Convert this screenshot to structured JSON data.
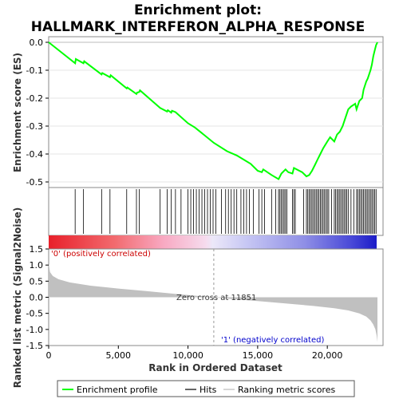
{
  "title_line1": "Enrichment plot:",
  "title_line2": "HALLMARK_INTERFERON_ALPHA_RESPONSE",
  "es_axis_label": "Enrichment score (ES)",
  "metric_axis_label": "Ranked list metric (Signal2Noise)",
  "x_axis_label": "Rank in Ordered Dataset",
  "pos_label": "'0' (positively correlated)",
  "neg_label": "'1' (negatively correlated)",
  "zero_cross_label": "Zero cross at 11851",
  "legend": {
    "profile": "Enrichment profile",
    "hits": "Hits",
    "metric": "Ranking metric scores"
  },
  "colors": {
    "profile": "#00ff00",
    "pos_text": "#cc0000",
    "neg_text": "#0000cc",
    "metric_fill": "#c0c0c0"
  },
  "chart_data": {
    "type": "line",
    "x_ticks": [
      "0",
      "5,000",
      "10,000",
      "15,000",
      "20,000"
    ],
    "es_ticks": [
      "0.0",
      "-0.1",
      "-0.2",
      "-0.3",
      "-0.4",
      "-0.5"
    ],
    "metric_ticks": [
      "1.5",
      "1.0",
      "0.5",
      "0.0",
      "-0.5",
      "-1.0",
      "-1.5"
    ],
    "xlim": [
      0,
      24000
    ],
    "es_ylim": [
      -0.52,
      0.02
    ],
    "metric_ylim": [
      -1.5,
      1.5
    ],
    "zero_cross": 11851,
    "total_genes": 23600,
    "es_profile": [
      [
        0,
        0.0
      ],
      [
        1900,
        -0.075
      ],
      [
        1950,
        -0.06
      ],
      [
        2500,
        -0.075
      ],
      [
        2550,
        -0.068
      ],
      [
        3800,
        -0.115
      ],
      [
        3850,
        -0.11
      ],
      [
        4400,
        -0.125
      ],
      [
        4450,
        -0.118
      ],
      [
        5600,
        -0.165
      ],
      [
        5650,
        -0.162
      ],
      [
        6300,
        -0.185
      ],
      [
        6350,
        -0.18
      ],
      [
        6500,
        -0.178
      ],
      [
        6550,
        -0.172
      ],
      [
        8000,
        -0.235
      ],
      [
        8500,
        -0.248
      ],
      [
        8550,
        -0.243
      ],
      [
        8800,
        -0.252
      ],
      [
        8850,
        -0.245
      ],
      [
        9100,
        -0.25
      ],
      [
        10000,
        -0.29
      ],
      [
        10500,
        -0.305
      ],
      [
        11000,
        -0.325
      ],
      [
        11850,
        -0.36
      ],
      [
        12800,
        -0.39
      ],
      [
        13500,
        -0.405
      ],
      [
        14000,
        -0.42
      ],
      [
        14500,
        -0.435
      ],
      [
        15000,
        -0.46
      ],
      [
        15300,
        -0.465
      ],
      [
        15400,
        -0.455
      ],
      [
        16000,
        -0.475
      ],
      [
        16500,
        -0.49
      ],
      [
        16700,
        -0.47
      ],
      [
        17000,
        -0.455
      ],
      [
        17200,
        -0.465
      ],
      [
        17500,
        -0.47
      ],
      [
        17600,
        -0.45
      ],
      [
        18200,
        -0.465
      ],
      [
        18500,
        -0.48
      ],
      [
        18700,
        -0.475
      ],
      [
        18900,
        -0.46
      ],
      [
        19100,
        -0.44
      ],
      [
        19300,
        -0.42
      ],
      [
        19500,
        -0.4
      ],
      [
        19700,
        -0.38
      ],
      [
        20000,
        -0.355
      ],
      [
        20200,
        -0.34
      ],
      [
        20500,
        -0.355
      ],
      [
        20700,
        -0.33
      ],
      [
        20900,
        -0.32
      ],
      [
        21100,
        -0.3
      ],
      [
        21300,
        -0.27
      ],
      [
        21500,
        -0.24
      ],
      [
        21700,
        -0.23
      ],
      [
        22000,
        -0.22
      ],
      [
        22100,
        -0.24
      ],
      [
        22300,
        -0.21
      ],
      [
        22500,
        -0.2
      ],
      [
        22600,
        -0.17
      ],
      [
        22800,
        -0.14
      ],
      [
        22900,
        -0.13
      ],
      [
        23100,
        -0.1
      ],
      [
        23200,
        -0.08
      ],
      [
        23300,
        -0.05
      ],
      [
        23400,
        -0.03
      ],
      [
        23500,
        -0.01
      ],
      [
        23600,
        0.0
      ]
    ],
    "hits": [
      1900,
      2500,
      3800,
      4400,
      5600,
      6300,
      6500,
      8000,
      8500,
      8800,
      9100,
      9500,
      10000,
      10200,
      10400,
      10600,
      10800,
      11000,
      11200,
      11400,
      11600,
      11800,
      12000,
      12400,
      12700,
      12900,
      13100,
      13300,
      13500,
      13800,
      14000,
      14200,
      14400,
      14700,
      15100,
      15300,
      15500,
      16000,
      16300,
      16500,
      16600,
      16700,
      16800,
      16900,
      17000,
      17100,
      17500,
      17600,
      17700,
      18300,
      18500,
      18600,
      18700,
      18800,
      18900,
      19000,
      19100,
      19200,
      19300,
      19400,
      19500,
      19600,
      19700,
      19800,
      19900,
      20000,
      20100,
      20300,
      20500,
      20600,
      20700,
      20800,
      20900,
      21000,
      21100,
      21200,
      21300,
      21400,
      21500,
      21700,
      21900,
      22100,
      22200,
      22300,
      22400,
      22500,
      22600,
      22700,
      22800,
      22900,
      23000,
      23100,
      23200,
      23300,
      23400,
      23500
    ],
    "metric_profile": [
      [
        0,
        1.05
      ],
      [
        100,
        0.78
      ],
      [
        300,
        0.66
      ],
      [
        700,
        0.56
      ],
      [
        1500,
        0.46
      ],
      [
        3000,
        0.36
      ],
      [
        5000,
        0.27
      ],
      [
        7000,
        0.19
      ],
      [
        9000,
        0.11
      ],
      [
        10500,
        0.05
      ],
      [
        11851,
        0.0
      ],
      [
        13000,
        -0.05
      ],
      [
        15000,
        -0.12
      ],
      [
        17000,
        -0.19
      ],
      [
        19000,
        -0.27
      ],
      [
        20500,
        -0.34
      ],
      [
        21500,
        -0.41
      ],
      [
        22300,
        -0.5
      ],
      [
        22800,
        -0.6
      ],
      [
        23100,
        -0.72
      ],
      [
        23300,
        -0.85
      ],
      [
        23450,
        -1.0
      ],
      [
        23550,
        -1.2
      ],
      [
        23600,
        -1.38
      ]
    ]
  }
}
